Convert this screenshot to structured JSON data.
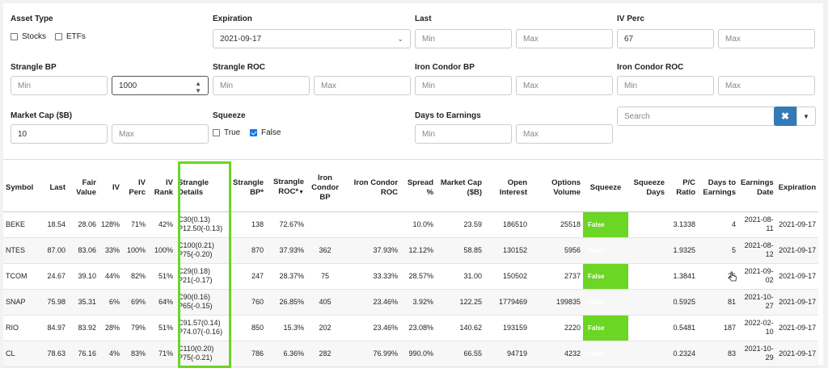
{
  "filters": {
    "asset_type": {
      "label": "Asset Type",
      "options": [
        {
          "label": "Stocks",
          "checked": false
        },
        {
          "label": "ETFs",
          "checked": false
        }
      ]
    },
    "expiration": {
      "label": "Expiration",
      "value": "2021-09-17"
    },
    "last": {
      "label": "Last",
      "min_placeholder": "Min",
      "max_placeholder": "Max"
    },
    "iv_perc": {
      "label": "IV Perc",
      "min_value": "67",
      "max_placeholder": "Max"
    },
    "strangle_bp": {
      "label": "Strangle BP",
      "min_placeholder": "Min",
      "max_value": "1000"
    },
    "strangle_roc": {
      "label": "Strangle ROC",
      "min_placeholder": "Min",
      "max_placeholder": "Max"
    },
    "iron_condor_bp": {
      "label": "Iron Condor BP",
      "min_placeholder": "Min",
      "max_placeholder": "Max"
    },
    "iron_condor_roc": {
      "label": "Iron Condor ROC",
      "min_placeholder": "Min",
      "max_placeholder": "Max"
    },
    "market_cap": {
      "label": "Market Cap ($B)",
      "min_value": "10",
      "max_placeholder": "Max"
    },
    "squeeze": {
      "label": "Squeeze",
      "options": [
        {
          "label": "True",
          "checked": false
        },
        {
          "label": "False",
          "checked": true
        }
      ]
    },
    "days_to_earnings": {
      "label": "Days to Earnings",
      "min_placeholder": "Min",
      "max_placeholder": "Max"
    },
    "search": {
      "placeholder": "Search",
      "clear_symbol": "✖",
      "caret_symbol": "▼"
    }
  },
  "table": {
    "headers": {
      "symbol": "Symbol",
      "last": "Last",
      "fair_value": "Fair Value",
      "iv": "IV",
      "iv_perc": "IV Perc",
      "iv_rank": "IV Rank",
      "strangle_details": "Strangle Details",
      "strangle_bp": "Strangle BP*",
      "strangle_roc": "Strangle ROC*",
      "iron_condor_bp": "Iron Condor BP",
      "iron_condor_roc": "Iron Condor ROC",
      "spread": "Spread %",
      "market_cap": "Market Cap ($B)",
      "open_interest": "Open Interest",
      "options_volume": "Options Volume",
      "squeeze": "Squeeze",
      "squeeze_days": "Squeeze Days",
      "pc_ratio": "P/C Ratio",
      "days_to_earnings": "Days to Earnings",
      "earnings_date": "Earnings Date",
      "expiration": "Expiration"
    },
    "rows": [
      {
        "symbol": "BEKE",
        "last": "18.54",
        "fair_value": "28.06",
        "iv": "128%",
        "iv_perc": "71%",
        "iv_rank": "42%",
        "strangle_call": "C30(0.13)",
        "strangle_put": "P12.50(-0.13)",
        "strangle_bp": "138",
        "strangle_roc": "72.67%",
        "iron_condor_bp": "",
        "iron_condor_roc": "",
        "spread": "10.0%",
        "market_cap": "23.59",
        "open_interest": "186510",
        "options_volume": "25518",
        "squeeze": "False",
        "squeeze_days": "",
        "pc_ratio": "3.1338",
        "days_to_earnings": "4",
        "earnings_date_1": "2021-08-",
        "earnings_date_2": "11",
        "expiration": "2021-09-17"
      },
      {
        "symbol": "NTES",
        "last": "87.00",
        "fair_value": "83.06",
        "iv": "33%",
        "iv_perc": "100%",
        "iv_rank": "100%",
        "strangle_call": "C100(0.21)",
        "strangle_put": "P75(-0.20)",
        "strangle_bp": "870",
        "strangle_roc": "37.93%",
        "iron_condor_bp": "362",
        "iron_condor_roc": "37.93%",
        "spread": "12.12%",
        "market_cap": "58.85",
        "open_interest": "130152",
        "options_volume": "5956",
        "squeeze": "False",
        "squeeze_days": "",
        "pc_ratio": "1.9325",
        "days_to_earnings": "5",
        "earnings_date_1": "2021-08-",
        "earnings_date_2": "12",
        "expiration": "2021-09-17"
      },
      {
        "symbol": "TCOM",
        "last": "24.67",
        "fair_value": "39.10",
        "iv": "44%",
        "iv_perc": "82%",
        "iv_rank": "51%",
        "strangle_call": "C29(0.18)",
        "strangle_put": "P21(-0.17)",
        "strangle_bp": "247",
        "strangle_roc": "28.37%",
        "iron_condor_bp": "75",
        "iron_condor_roc": "33.33%",
        "spread": "28.57%",
        "market_cap": "31.00",
        "open_interest": "150502",
        "options_volume": "2737",
        "squeeze": "False",
        "squeeze_days": "",
        "pc_ratio": "1.3841",
        "days_to_earnings": "26",
        "earnings_date_1": "2021-09-",
        "earnings_date_2": "02",
        "expiration": "2021-09-17"
      },
      {
        "symbol": "SNAP",
        "last": "75.98",
        "fair_value": "35.31",
        "iv": "6%",
        "iv_perc": "69%",
        "iv_rank": "64%",
        "strangle_call": "C90(0.16)",
        "strangle_put": "P65(-0.15)",
        "strangle_bp": "760",
        "strangle_roc": "26.85%",
        "iron_condor_bp": "405",
        "iron_condor_roc": "23.46%",
        "spread": "3.92%",
        "market_cap": "122.25",
        "open_interest": "1779469",
        "options_volume": "199835",
        "squeeze": "False",
        "squeeze_days": "",
        "pc_ratio": "0.5925",
        "days_to_earnings": "81",
        "earnings_date_1": "2021-10-",
        "earnings_date_2": "27",
        "expiration": "2021-09-17"
      },
      {
        "symbol": "RIO",
        "last": "84.97",
        "fair_value": "83.92",
        "iv": "28%",
        "iv_perc": "79%",
        "iv_rank": "51%",
        "strangle_call": "C91.57(0.14)",
        "strangle_put": "P74.07(-0.16)",
        "strangle_bp": "850",
        "strangle_roc": "15.3%",
        "iron_condor_bp": "202",
        "iron_condor_roc": "23.46%",
        "spread": "23.08%",
        "market_cap": "140.62",
        "open_interest": "193159",
        "options_volume": "2220",
        "squeeze": "False",
        "squeeze_days": "",
        "pc_ratio": "0.5481",
        "days_to_earnings": "187",
        "earnings_date_1": "2022-02-",
        "earnings_date_2": "10",
        "expiration": "2021-09-17"
      },
      {
        "symbol": "CL",
        "last": "78.63",
        "fair_value": "76.16",
        "iv": "4%",
        "iv_perc": "83%",
        "iv_rank": "71%",
        "strangle_call": "C110(0.20)",
        "strangle_put": "P75(-0.21)",
        "strangle_bp": "786",
        "strangle_roc": "6.36%",
        "iron_condor_bp": "282",
        "iron_condor_roc": "76.99%",
        "spread": "990.0%",
        "market_cap": "66.55",
        "open_interest": "94719",
        "options_volume": "4232",
        "squeeze": "False",
        "squeeze_days": "",
        "pc_ratio": "0.2324",
        "days_to_earnings": "83",
        "earnings_date_1": "2021-10-",
        "earnings_date_2": "29",
        "expiration": "2021-09-17"
      }
    ]
  },
  "colors": {
    "highlight": "#6bd623",
    "squeeze_cell": "#6bd623",
    "clear_button": "#337ab7"
  }
}
